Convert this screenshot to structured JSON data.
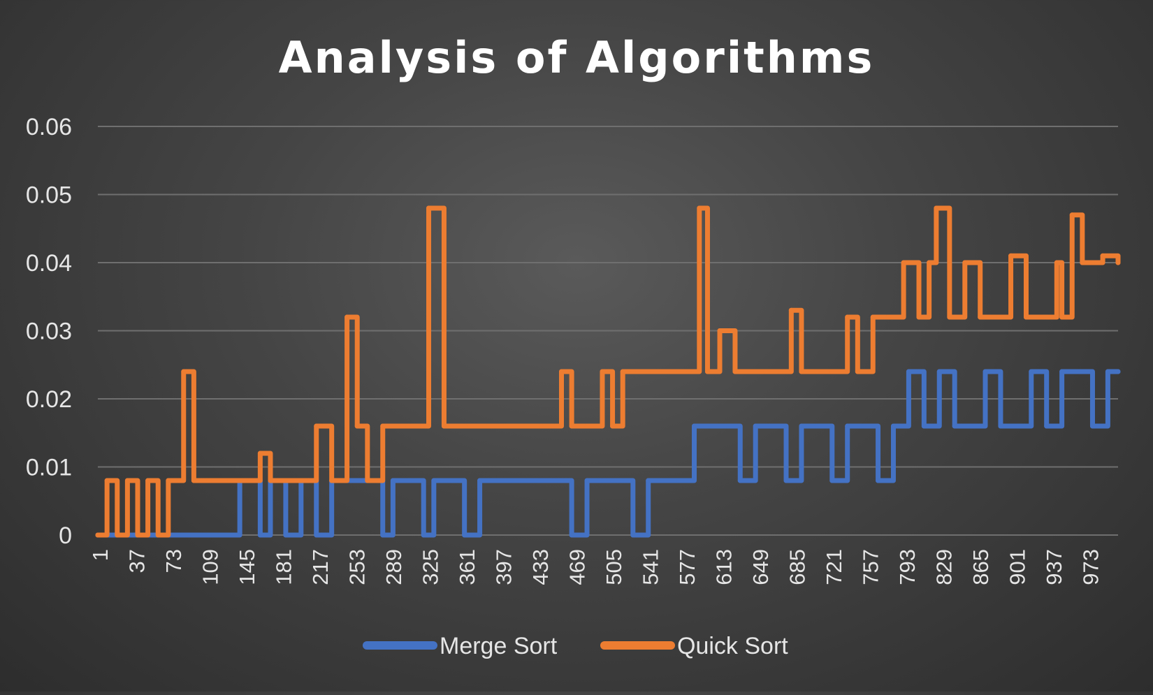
{
  "chart_data": {
    "type": "line",
    "title": "Analysis of Algorithms",
    "xlabel": "",
    "ylabel": "",
    "ylim": [
      0,
      0.06
    ],
    "y_ticks": [
      0,
      0.01,
      0.02,
      0.03,
      0.04,
      0.05,
      0.06
    ],
    "y_tick_labels": [
      "0",
      "0.01",
      "0.02",
      "0.03",
      "0.04",
      "0.05",
      "0.06"
    ],
    "x_range": [
      1,
      1000
    ],
    "x_tick_labels": [
      "1",
      "37",
      "73",
      "109",
      "145",
      "181",
      "217",
      "253",
      "289",
      "325",
      "361",
      "397",
      "433",
      "469",
      "505",
      "541",
      "577",
      "613",
      "649",
      "685",
      "721",
      "757",
      "793",
      "829",
      "865",
      "901",
      "937",
      "973"
    ],
    "grid": true,
    "legend_position": "bottom",
    "colors": {
      "Merge Sort": "#4472c4",
      "Quick Sort": "#ed7d31"
    },
    "series": [
      {
        "name": "Merge Sort",
        "x": [
          1,
          20,
          40,
          60,
          80,
          100,
          120,
          140,
          160,
          170,
          185,
          200,
          215,
          230,
          240,
          250,
          265,
          280,
          290,
          300,
          310,
          320,
          330,
          345,
          360,
          375,
          390,
          405,
          420,
          435,
          450,
          465,
          480,
          495,
          505,
          515,
          525,
          540,
          555,
          570,
          585,
          600,
          615,
          630,
          645,
          660,
          675,
          690,
          705,
          720,
          735,
          750,
          765,
          780,
          795,
          810,
          825,
          840,
          855,
          870,
          885,
          900,
          915,
          930,
          945,
          960,
          975,
          990,
          1000
        ],
        "y": [
          0,
          0,
          0,
          0,
          0,
          0,
          0,
          0.008,
          0,
          0.008,
          0,
          0.008,
          0,
          0.008,
          0.008,
          0.008,
          0.008,
          0,
          0.008,
          0.008,
          0.008,
          0,
          0.008,
          0.008,
          0,
          0.008,
          0.008,
          0.008,
          0.008,
          0.008,
          0.008,
          0,
          0.008,
          0.008,
          0.008,
          0.008,
          0,
          0.008,
          0.008,
          0.008,
          0.016,
          0.016,
          0.016,
          0.008,
          0.016,
          0.016,
          0.008,
          0.016,
          0.016,
          0.008,
          0.016,
          0.016,
          0.008,
          0.016,
          0.024,
          0.016,
          0.024,
          0.016,
          0.016,
          0.024,
          0.016,
          0.016,
          0.024,
          0.016,
          0.024,
          0.024,
          0.016,
          0.024,
          0.024
        ]
      },
      {
        "name": "Quick Sort",
        "x": [
          1,
          10,
          20,
          30,
          40,
          50,
          60,
          70,
          80,
          85,
          95,
          110,
          130,
          145,
          150,
          160,
          170,
          190,
          205,
          215,
          230,
          238,
          245,
          255,
          265,
          280,
          300,
          318,
          325,
          340,
          360,
          380,
          400,
          420,
          435,
          450,
          455,
          465,
          480,
          495,
          505,
          515,
          525,
          540,
          555,
          570,
          580,
          590,
          598,
          610,
          625,
          640,
          655,
          670,
          680,
          690,
          705,
          720,
          735,
          745,
          760,
          775,
          790,
          805,
          815,
          822,
          835,
          850,
          865,
          880,
          895,
          910,
          925,
          940,
          945,
          955,
          965,
          975,
          985,
          1000
        ],
        "y": [
          0,
          0.008,
          0,
          0.008,
          0,
          0.008,
          0,
          0.008,
          0.008,
          0.024,
          0.008,
          0.008,
          0.008,
          0.008,
          0.008,
          0.012,
          0.008,
          0.008,
          0.008,
          0.016,
          0.008,
          0.008,
          0.032,
          0.016,
          0.008,
          0.016,
          0.016,
          0.016,
          0.048,
          0.016,
          0.016,
          0.016,
          0.016,
          0.016,
          0.016,
          0.016,
          0.024,
          0.016,
          0.016,
          0.024,
          0.016,
          0.024,
          0.024,
          0.024,
          0.024,
          0.024,
          0.024,
          0.048,
          0.024,
          0.03,
          0.024,
          0.024,
          0.024,
          0.024,
          0.033,
          0.024,
          0.024,
          0.024,
          0.032,
          0.024,
          0.032,
          0.032,
          0.04,
          0.032,
          0.04,
          0.048,
          0.032,
          0.04,
          0.032,
          0.032,
          0.041,
          0.032,
          0.032,
          0.04,
          0.032,
          0.047,
          0.04,
          0.04,
          0.041,
          0.04
        ]
      }
    ]
  }
}
